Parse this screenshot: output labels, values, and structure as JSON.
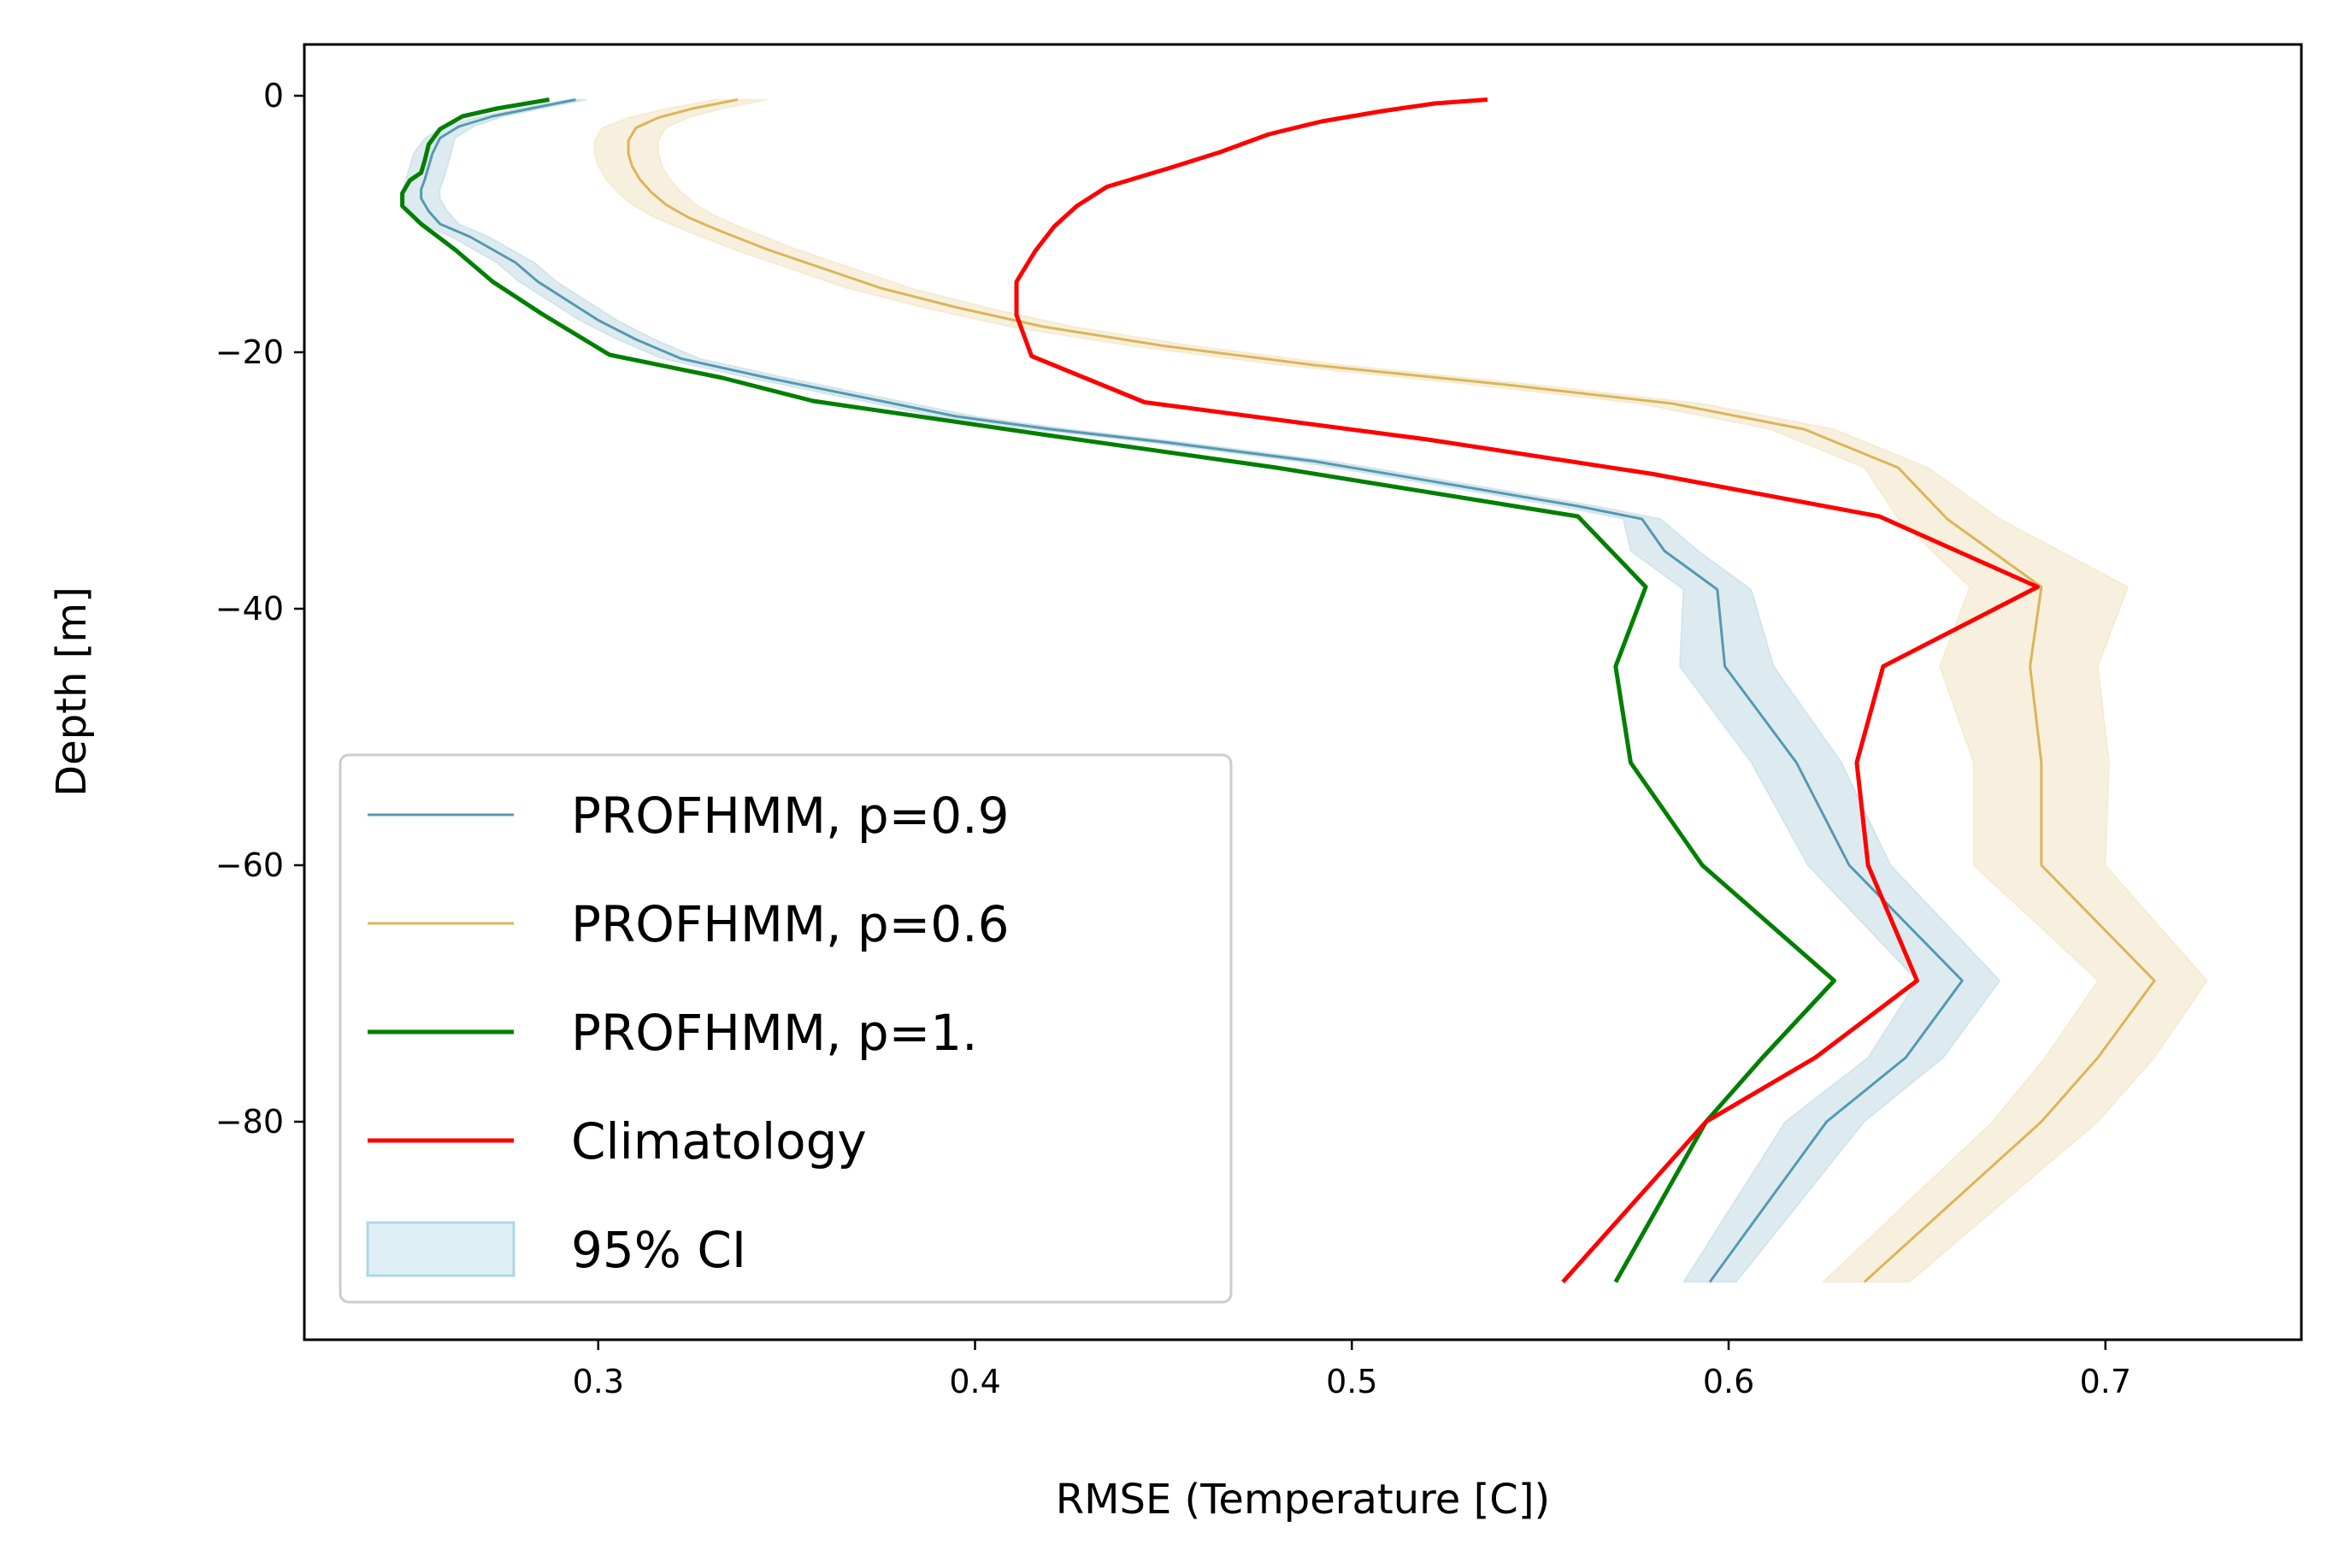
{
  "chart_data": {
    "type": "line",
    "title": "",
    "xlabel": "RMSE (Temperature [C])",
    "ylabel": "Depth [m]",
    "xlim": [
      0.222,
      0.752
    ],
    "ylim": [
      -97,
      4
    ],
    "xticks": [
      0.3,
      0.4,
      0.5,
      0.6,
      0.7
    ],
    "xtick_labels": [
      "0.3",
      "0.4",
      "0.5",
      "0.6",
      "0.7"
    ],
    "yticks": [
      0,
      -20,
      -40,
      -60,
      -80
    ],
    "ytick_labels": [
      "0",
      "−20",
      "−40",
      "−60",
      "−80"
    ],
    "grid": false,
    "legend_position": "lower-left",
    "series": [
      {
        "name": "PROFHMM, p=0.9",
        "color": "#5599b2",
        "line_width": 3,
        "points": [
          [
            0.294,
            -0.3
          ],
          [
            0.282,
            -1
          ],
          [
            0.272,
            -1.6
          ],
          [
            0.263,
            -2.4
          ],
          [
            0.258,
            -3.3
          ],
          [
            0.256,
            -4.5
          ],
          [
            0.255,
            -5.5
          ],
          [
            0.254,
            -6.5
          ],
          [
            0.253,
            -7.3
          ],
          [
            0.253,
            -8
          ],
          [
            0.255,
            -9
          ],
          [
            0.258,
            -10
          ],
          [
            0.266,
            -11
          ],
          [
            0.272,
            -12
          ],
          [
            0.278,
            -13
          ],
          [
            0.284,
            -14.5
          ],
          [
            0.292,
            -16
          ],
          [
            0.3,
            -17.5
          ],
          [
            0.31,
            -19
          ],
          [
            0.322,
            -20.5
          ],
          [
            0.345,
            -22
          ],
          [
            0.37,
            -23.5
          ],
          [
            0.395,
            -25
          ],
          [
            0.42,
            -26
          ],
          [
            0.45,
            -27
          ],
          [
            0.49,
            -28.5
          ],
          [
            0.53,
            -30.5
          ],
          [
            0.56,
            -32
          ],
          [
            0.577,
            -33
          ],
          [
            0.583,
            -35.5
          ],
          [
            0.597,
            -38.5
          ],
          [
            0.599,
            -44.5
          ],
          [
            0.618,
            -52
          ],
          [
            0.632,
            -60
          ],
          [
            0.662,
            -69
          ],
          [
            0.647,
            -75
          ],
          [
            0.626,
            -80
          ],
          [
            0.595,
            -92.5
          ]
        ],
        "ci_lower": [
          [
            0.292,
            -0.3
          ],
          [
            0.279,
            -1
          ],
          [
            0.269,
            -1.6
          ],
          [
            0.259,
            -2.4
          ],
          [
            0.254,
            -3.3
          ],
          [
            0.251,
            -4.5
          ],
          [
            0.25,
            -5.5
          ],
          [
            0.249,
            -6.5
          ],
          [
            0.248,
            -7.3
          ],
          [
            0.248,
            -8
          ],
          [
            0.25,
            -9
          ],
          [
            0.253,
            -10
          ],
          [
            0.261,
            -11
          ],
          [
            0.267,
            -12
          ],
          [
            0.273,
            -13
          ],
          [
            0.279,
            -14.5
          ],
          [
            0.287,
            -16
          ],
          [
            0.295,
            -17.5
          ],
          [
            0.305,
            -19
          ],
          [
            0.317,
            -20.5
          ],
          [
            0.34,
            -22
          ],
          [
            0.365,
            -23.5
          ],
          [
            0.39,
            -25
          ],
          [
            0.415,
            -26
          ],
          [
            0.445,
            -27
          ],
          [
            0.485,
            -28.5
          ],
          [
            0.525,
            -30.5
          ],
          [
            0.555,
            -32
          ],
          [
            0.572,
            -33
          ],
          [
            0.574,
            -35.5
          ],
          [
            0.588,
            -38.5
          ],
          [
            0.587,
            -44.5
          ],
          [
            0.606,
            -52
          ],
          [
            0.621,
            -60
          ],
          [
            0.65,
            -69
          ],
          [
            0.637,
            -75
          ],
          [
            0.615,
            -80
          ],
          [
            0.588,
            -92.5
          ]
        ],
        "ci_upper": [
          [
            0.297,
            -0.3
          ],
          [
            0.285,
            -1
          ],
          [
            0.275,
            -1.6
          ],
          [
            0.267,
            -2.4
          ],
          [
            0.262,
            -3.3
          ],
          [
            0.261,
            -4.5
          ],
          [
            0.26,
            -5.5
          ],
          [
            0.259,
            -6.5
          ],
          [
            0.258,
            -7.3
          ],
          [
            0.258,
            -8
          ],
          [
            0.26,
            -9
          ],
          [
            0.263,
            -10
          ],
          [
            0.271,
            -11
          ],
          [
            0.277,
            -12
          ],
          [
            0.283,
            -13
          ],
          [
            0.289,
            -14.5
          ],
          [
            0.297,
            -16
          ],
          [
            0.305,
            -17.5
          ],
          [
            0.315,
            -19
          ],
          [
            0.327,
            -20.5
          ],
          [
            0.35,
            -22
          ],
          [
            0.375,
            -23.5
          ],
          [
            0.4,
            -25
          ],
          [
            0.425,
            -26
          ],
          [
            0.455,
            -27
          ],
          [
            0.495,
            -28.5
          ],
          [
            0.535,
            -30.5
          ],
          [
            0.565,
            -32
          ],
          [
            0.582,
            -33
          ],
          [
            0.592,
            -35.5
          ],
          [
            0.606,
            -38.5
          ],
          [
            0.612,
            -44.5
          ],
          [
            0.63,
            -52
          ],
          [
            0.643,
            -60
          ],
          [
            0.672,
            -69
          ],
          [
            0.657,
            -75
          ],
          [
            0.636,
            -80
          ],
          [
            0.602,
            -92.5
          ]
        ]
      },
      {
        "name": "PROFHMM, p=0.6",
        "color": "#dbb55a",
        "line_width": 3,
        "points": [
          [
            0.337,
            -0.3
          ],
          [
            0.325,
            -1
          ],
          [
            0.316,
            -1.7
          ],
          [
            0.31,
            -2.5
          ],
          [
            0.308,
            -3.5
          ],
          [
            0.308,
            -4.5
          ],
          [
            0.309,
            -5.5
          ],
          [
            0.311,
            -6.5
          ],
          [
            0.314,
            -7.5
          ],
          [
            0.318,
            -8.5
          ],
          [
            0.324,
            -9.5
          ],
          [
            0.332,
            -10.5
          ],
          [
            0.345,
            -12
          ],
          [
            0.36,
            -13.5
          ],
          [
            0.375,
            -15
          ],
          [
            0.395,
            -16.5
          ],
          [
            0.418,
            -18
          ],
          [
            0.45,
            -19.5
          ],
          [
            0.49,
            -21
          ],
          [
            0.54,
            -22.5
          ],
          [
            0.585,
            -24
          ],
          [
            0.62,
            -26
          ],
          [
            0.645,
            -29
          ],
          [
            0.658,
            -33
          ],
          [
            0.683,
            -38.3
          ],
          [
            0.68,
            -44.5
          ],
          [
            0.683,
            -52
          ],
          [
            0.683,
            -60
          ],
          [
            0.713,
            -69
          ],
          [
            0.698,
            -75
          ],
          [
            0.683,
            -80
          ],
          [
            0.636,
            -92.5
          ]
        ],
        "ci_lower": [
          [
            0.331,
            -0.3
          ],
          [
            0.318,
            -1
          ],
          [
            0.308,
            -1.7
          ],
          [
            0.301,
            -2.5
          ],
          [
            0.299,
            -3.5
          ],
          [
            0.299,
            -4.5
          ],
          [
            0.3,
            -5.5
          ],
          [
            0.302,
            -6.5
          ],
          [
            0.305,
            -7.5
          ],
          [
            0.309,
            -8.5
          ],
          [
            0.315,
            -9.5
          ],
          [
            0.323,
            -10.5
          ],
          [
            0.336,
            -12
          ],
          [
            0.351,
            -13.5
          ],
          [
            0.366,
            -15
          ],
          [
            0.386,
            -16.5
          ],
          [
            0.409,
            -18
          ],
          [
            0.441,
            -19.5
          ],
          [
            0.481,
            -21
          ],
          [
            0.531,
            -22.5
          ],
          [
            0.576,
            -24
          ],
          [
            0.611,
            -26
          ],
          [
            0.636,
            -29
          ],
          [
            0.645,
            -33
          ],
          [
            0.664,
            -38.3
          ],
          [
            0.656,
            -44.5
          ],
          [
            0.665,
            -52
          ],
          [
            0.665,
            -60
          ],
          [
            0.698,
            -69
          ],
          [
            0.684,
            -75
          ],
          [
            0.67,
            -80
          ],
          [
            0.625,
            -92.5
          ]
        ],
        "ci_upper": [
          [
            0.345,
            -0.3
          ],
          [
            0.333,
            -1
          ],
          [
            0.324,
            -1.7
          ],
          [
            0.318,
            -2.5
          ],
          [
            0.316,
            -3.5
          ],
          [
            0.316,
            -4.5
          ],
          [
            0.317,
            -5.5
          ],
          [
            0.319,
            -6.5
          ],
          [
            0.322,
            -7.5
          ],
          [
            0.326,
            -8.5
          ],
          [
            0.332,
            -9.5
          ],
          [
            0.34,
            -10.5
          ],
          [
            0.353,
            -12
          ],
          [
            0.368,
            -13.5
          ],
          [
            0.383,
            -15
          ],
          [
            0.403,
            -16.5
          ],
          [
            0.426,
            -18
          ],
          [
            0.458,
            -19.5
          ],
          [
            0.498,
            -21
          ],
          [
            0.548,
            -22.5
          ],
          [
            0.593,
            -24
          ],
          [
            0.628,
            -26
          ],
          [
            0.653,
            -29
          ],
          [
            0.672,
            -33
          ],
          [
            0.706,
            -38.3
          ],
          [
            0.698,
            -44.5
          ],
          [
            0.701,
            -52
          ],
          [
            0.7,
            -60
          ],
          [
            0.727,
            -69
          ],
          [
            0.713,
            -75
          ],
          [
            0.698,
            -80
          ],
          [
            0.648,
            -92.5
          ]
        ]
      },
      {
        "name": "PROFHMM, p=1.",
        "color": "#007f00",
        "line_width": 5,
        "points": [
          [
            0.287,
            -0.3
          ],
          [
            0.273,
            -1
          ],
          [
            0.264,
            -1.6
          ],
          [
            0.258,
            -2.6
          ],
          [
            0.255,
            -3.8
          ],
          [
            0.254,
            -5
          ],
          [
            0.253,
            -6
          ],
          [
            0.25,
            -6.6
          ],
          [
            0.248,
            -7.6
          ],
          [
            0.248,
            -8.6
          ],
          [
            0.253,
            -10
          ],
          [
            0.262,
            -12
          ],
          [
            0.272,
            -14.5
          ],
          [
            0.285,
            -17
          ],
          [
            0.303,
            -20.2
          ],
          [
            0.333,
            -22
          ],
          [
            0.357,
            -23.8
          ],
          [
            0.42,
            -26.5
          ],
          [
            0.48,
            -29
          ],
          [
            0.56,
            -32.8
          ],
          [
            0.578,
            -38.3
          ],
          [
            0.57,
            -44.5
          ],
          [
            0.574,
            -52
          ],
          [
            0.593,
            -60
          ],
          [
            0.628,
            -69
          ],
          [
            0.609,
            -75
          ],
          [
            0.594,
            -80
          ],
          [
            0.57,
            -92.5
          ]
        ]
      },
      {
        "name": "Climatology",
        "color": "#ff0000",
        "line_width": 5,
        "points": [
          [
            0.536,
            -0.3
          ],
          [
            0.522,
            -0.6
          ],
          [
            0.508,
            -1.2
          ],
          [
            0.492,
            -2
          ],
          [
            0.478,
            -3
          ],
          [
            0.465,
            -4.4
          ],
          [
            0.452,
            -5.6
          ],
          [
            0.435,
            -7.1
          ],
          [
            0.427,
            -8.6
          ],
          [
            0.421,
            -10.2
          ],
          [
            0.416,
            -12.1
          ],
          [
            0.411,
            -14.5
          ],
          [
            0.411,
            -17.1
          ],
          [
            0.415,
            -20.3
          ],
          [
            0.445,
            -23.9
          ],
          [
            0.52,
            -26.8
          ],
          [
            0.58,
            -29.5
          ],
          [
            0.64,
            -32.8
          ],
          [
            0.682,
            -38.3
          ],
          [
            0.641,
            -44.5
          ],
          [
            0.634,
            -52
          ],
          [
            0.637,
            -60
          ],
          [
            0.65,
            -69
          ],
          [
            0.623,
            -75
          ],
          [
            0.594,
            -80
          ],
          [
            0.556,
            -92.5
          ]
        ]
      }
    ],
    "legend": {
      "entries": [
        {
          "label": "PROFHMM, p=0.9",
          "kind": "line",
          "color": "#5599b2",
          "width": 3
        },
        {
          "label": "PROFHMM, p=0.6",
          "kind": "line",
          "color": "#dbb55a",
          "width": 3
        },
        {
          "label": "PROFHMM, p=1.",
          "kind": "line",
          "color": "#007f00",
          "width": 5
        },
        {
          "label": "Climatology",
          "kind": "line",
          "color": "#ff0000",
          "width": 5
        },
        {
          "label": "95% CI",
          "kind": "patch",
          "color": "#add8e6"
        }
      ]
    }
  }
}
